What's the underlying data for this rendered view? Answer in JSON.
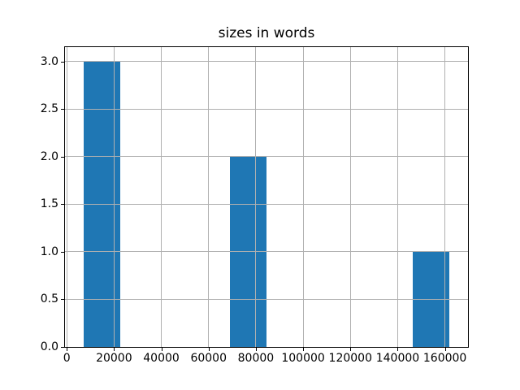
{
  "window": {
    "background": "#ffffff"
  },
  "chart_data": {
    "type": "histogram",
    "title": "sizes in words",
    "xlabel": "",
    "ylabel": "",
    "grid": true,
    "axisbelow": false,
    "legend": "none",
    "bar_color": "#1f77b4",
    "grid_color": "#b0b0b0",
    "spine_color": "#000000",
    "text_color": "#000000",
    "xlim": [
      -750,
      169750
    ],
    "ylim": [
      0,
      3.15
    ],
    "xticks": [
      0,
      20000,
      40000,
      60000,
      80000,
      100000,
      120000,
      140000,
      160000
    ],
    "xtick_labels": [
      "0",
      "20000",
      "40000",
      "60000",
      "80000",
      "100000",
      "120000",
      "140000",
      "160000"
    ],
    "yticks": [
      0.0,
      0.5,
      1.0,
      1.5,
      2.0,
      2.5,
      3.0
    ],
    "ytick_labels": [
      "0.0",
      "0.5",
      "1.0",
      "1.5",
      "2.0",
      "2.5",
      "3.0"
    ],
    "bars": [
      {
        "x0": 7000,
        "x1": 22500,
        "count": 3
      },
      {
        "x0": 69000,
        "x1": 84500,
        "count": 2
      },
      {
        "x0": 146500,
        "x1": 162000,
        "count": 1
      }
    ]
  }
}
